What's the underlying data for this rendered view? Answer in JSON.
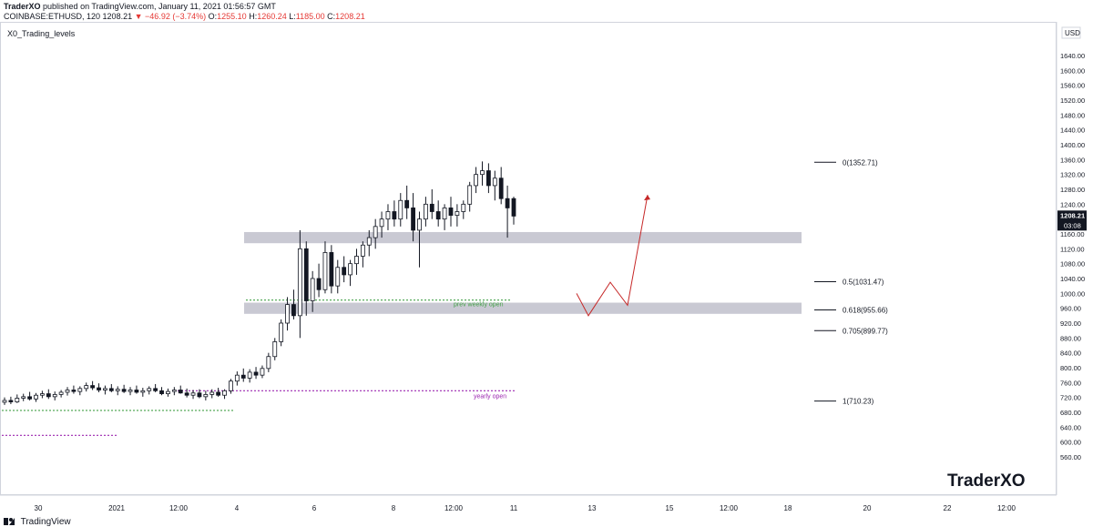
{
  "header": {
    "line1_author": "TraderXO",
    "line1_rest": " published on TradingView.com, January 11, 2021 01:56:57 GMT",
    "line2_symbol": "COINBASE:ETHUSD, 120",
    "line2_last": "1208.21",
    "line2_arrow": "▼",
    "line2_change": "−46.92 (−3.74%)",
    "line2_o_label": "O:",
    "line2_o": "1255.10",
    "line2_h_label": "H:",
    "line2_h": "1260.24",
    "line2_l_label": "L:",
    "line2_l": "1185.00",
    "line2_c_label": "C:",
    "line2_c": "1208.21"
  },
  "footer": {
    "brand": "TradingView"
  },
  "colors": {
    "up_candle": "#ffffff",
    "candle_outline": "#131722",
    "zone": "#c9c9d3",
    "green_dotted": "#43a047",
    "purple_dotted": "#9c27b0",
    "projection": "#c62828",
    "fib_line": "#131722",
    "last_price_bg": "#131722"
  },
  "chart_data": {
    "type": "candlestick",
    "indicator_label": "X0_Trading_levels",
    "currency": "USD",
    "watermark": "TraderXO",
    "y_ticks": [
      560,
      600,
      640,
      680,
      720,
      760,
      800,
      840,
      880,
      920,
      960,
      1000,
      1040,
      1080,
      1120,
      1160,
      1200,
      1240,
      1280,
      1320,
      1360,
      1400,
      1440,
      1480,
      1520,
      1560,
      1600,
      1640
    ],
    "y_tick_labels": [
      "560.00",
      "600.00",
      "640.00",
      "680.00",
      "720.00",
      "760.00",
      "800.00",
      "840.00",
      "880.00",
      "920.00",
      "960.00",
      "1000.00",
      "1040.00",
      "1080.00",
      "1120.00",
      "1160.00",
      "1200.00",
      "1240.00",
      "1280.00",
      "1320.00",
      "1360.00",
      "1400.00",
      "1440.00",
      "1480.00",
      "1520.00",
      "1560.00",
      "1600.00",
      "1640.00"
    ],
    "ylim": [
      540,
      1660
    ],
    "x_ticks": [
      "30",
      "2021",
      "12:00",
      "4",
      "6",
      "8",
      "12:00",
      "11",
      "13",
      "15",
      "12:00",
      "18",
      "20",
      "22",
      "12:00"
    ],
    "last_price": "1208.21",
    "countdown": "03:08",
    "ohlc": [
      [
        707,
        720,
        700,
        712
      ],
      [
        712,
        722,
        702,
        708
      ],
      [
        708,
        728,
        705,
        718
      ],
      [
        718,
        730,
        710,
        722
      ],
      [
        722,
        735,
        712,
        716
      ],
      [
        716,
        732,
        708,
        726
      ],
      [
        726,
        738,
        718,
        730
      ],
      [
        730,
        742,
        716,
        722
      ],
      [
        722,
        736,
        712,
        728
      ],
      [
        728,
        740,
        720,
        734
      ],
      [
        734,
        748,
        725,
        740
      ],
      [
        740,
        752,
        730,
        736
      ],
      [
        736,
        750,
        726,
        744
      ],
      [
        744,
        760,
        736,
        752
      ],
      [
        752,
        764,
        740,
        746
      ],
      [
        746,
        758,
        734,
        740
      ],
      [
        740,
        752,
        728,
        744
      ],
      [
        744,
        756,
        734,
        738
      ],
      [
        738,
        750,
        726,
        742
      ],
      [
        742,
        754,
        732,
        736
      ],
      [
        736,
        748,
        726,
        740
      ],
      [
        740,
        752,
        730,
        734
      ],
      [
        734,
        746,
        722,
        738
      ],
      [
        738,
        750,
        728,
        744
      ],
      [
        744,
        756,
        734,
        738
      ],
      [
        738,
        748,
        726,
        730
      ],
      [
        730,
        744,
        722,
        736
      ],
      [
        736,
        748,
        726,
        740
      ],
      [
        740,
        752,
        730,
        732
      ],
      [
        732,
        744,
        720,
        726
      ],
      [
        726,
        740,
        716,
        732
      ],
      [
        732,
        742,
        718,
        722
      ],
      [
        722,
        738,
        712,
        728
      ],
      [
        728,
        742,
        718,
        734
      ],
      [
        734,
        746,
        722,
        726
      ],
      [
        726,
        742,
        716,
        738
      ],
      [
        738,
        770,
        730,
        764
      ],
      [
        764,
        790,
        752,
        780
      ],
      [
        780,
        798,
        762,
        772
      ],
      [
        772,
        796,
        760,
        788
      ],
      [
        788,
        802,
        770,
        780
      ],
      [
        780,
        806,
        772,
        798
      ],
      [
        798,
        840,
        788,
        830
      ],
      [
        830,
        880,
        820,
        870
      ],
      [
        870,
        930,
        858,
        920
      ],
      [
        920,
        990,
        900,
        970
      ],
      [
        970,
        1010,
        930,
        940
      ],
      [
        940,
        1170,
        880,
        1120
      ],
      [
        1120,
        1140,
        940,
        980
      ],
      [
        980,
        1060,
        950,
        1040
      ],
      [
        1040,
        1080,
        990,
        1010
      ],
      [
        1010,
        1140,
        1000,
        1110
      ],
      [
        1110,
        1130,
        1000,
        1020
      ],
      [
        1020,
        1090,
        1000,
        1070
      ],
      [
        1070,
        1100,
        1030,
        1050
      ],
      [
        1050,
        1090,
        1020,
        1080
      ],
      [
        1080,
        1120,
        1050,
        1100
      ],
      [
        1100,
        1140,
        1070,
        1130
      ],
      [
        1130,
        1170,
        1100,
        1150
      ],
      [
        1150,
        1200,
        1120,
        1180
      ],
      [
        1180,
        1220,
        1150,
        1200
      ],
      [
        1200,
        1240,
        1170,
        1220
      ],
      [
        1220,
        1250,
        1180,
        1200
      ],
      [
        1200,
        1270,
        1180,
        1250
      ],
      [
        1250,
        1290,
        1200,
        1230
      ],
      [
        1230,
        1270,
        1140,
        1170
      ],
      [
        1170,
        1220,
        1070,
        1200
      ],
      [
        1200,
        1260,
        1180,
        1240
      ],
      [
        1240,
        1280,
        1200,
        1220
      ],
      [
        1220,
        1250,
        1180,
        1200
      ],
      [
        1200,
        1240,
        1170,
        1230
      ],
      [
        1230,
        1260,
        1180,
        1210
      ],
      [
        1210,
        1240,
        1180,
        1220
      ],
      [
        1220,
        1250,
        1200,
        1240
      ],
      [
        1240,
        1300,
        1220,
        1290
      ],
      [
        1290,
        1340,
        1270,
        1320
      ],
      [
        1320,
        1355,
        1290,
        1330
      ],
      [
        1330,
        1350,
        1270,
        1290
      ],
      [
        1290,
        1330,
        1250,
        1310
      ],
      [
        1310,
        1340,
        1240,
        1255
      ],
      [
        1255,
        1290,
        1150,
        1230
      ],
      [
        1255,
        1260,
        1185,
        1208
      ]
    ],
    "support_zones": [
      {
        "from": 1135,
        "to": 1165
      },
      {
        "from": 945,
        "to": 975
      }
    ],
    "levels": [
      {
        "name": "prev weekly open",
        "price": 982
      },
      {
        "name": "yearly open",
        "price": 738
      },
      {
        "name": "",
        "price": 685
      },
      {
        "name": "",
        "price": 618
      }
    ],
    "fib_levels": [
      {
        "label": "0(1352.71)",
        "price": 1352.71
      },
      {
        "label": "0.5(1031.47)",
        "price": 1031.47
      },
      {
        "label": "0.618(955.66)",
        "price": 955.66
      },
      {
        "label": "0.705(899.77)",
        "price": 899.77
      },
      {
        "label": "1(710.23)",
        "price": 710.23
      }
    ],
    "projection": [
      1000,
      940,
      1030,
      968,
      1265
    ]
  }
}
